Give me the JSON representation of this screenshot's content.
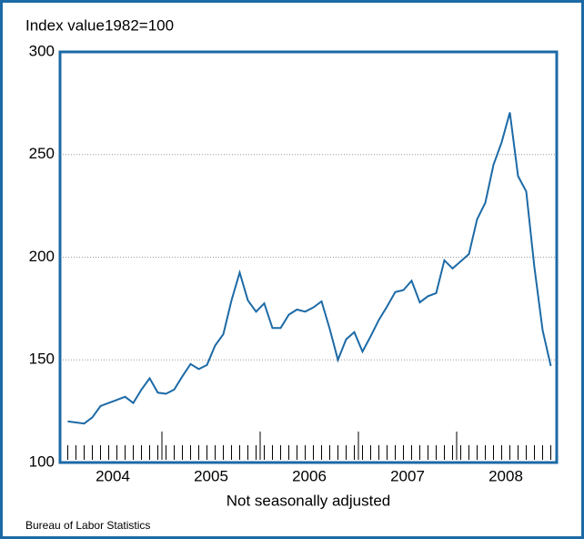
{
  "chart_data": {
    "type": "line",
    "title": "Index value1982=100",
    "x_label": "Not seasonally adjusted",
    "source": "Bureau of Labor Statistics",
    "categories": [
      "2004",
      "2005",
      "2006",
      "2007",
      "2008"
    ],
    "values": [
      [
        120,
        119.5,
        119,
        122,
        127.5,
        129,
        130.5,
        132,
        129,
        135.5,
        141,
        134
      ],
      [
        133.5,
        135.5,
        142,
        148,
        145.5,
        147.5,
        157,
        162.5,
        179,
        192.5,
        179,
        173.5
      ],
      [
        177.5,
        165.5,
        165.5,
        172,
        174.5,
        173.5,
        175.5,
        178.5,
        165,
        150,
        160,
        163.5
      ],
      [
        154,
        161.5,
        169.5,
        176,
        183,
        184,
        188.5,
        178,
        181,
        182.5,
        198.5,
        194.5
      ],
      [
        198,
        201.5,
        218.5,
        226.5,
        245,
        256,
        270.5,
        239.5,
        232,
        195,
        164.5,
        147
      ]
    ],
    "color": "#1c6aa6",
    "ylim": [
      100,
      300
    ],
    "yticks": [
      100,
      150,
      200,
      250,
      300
    ],
    "grid": true
  }
}
